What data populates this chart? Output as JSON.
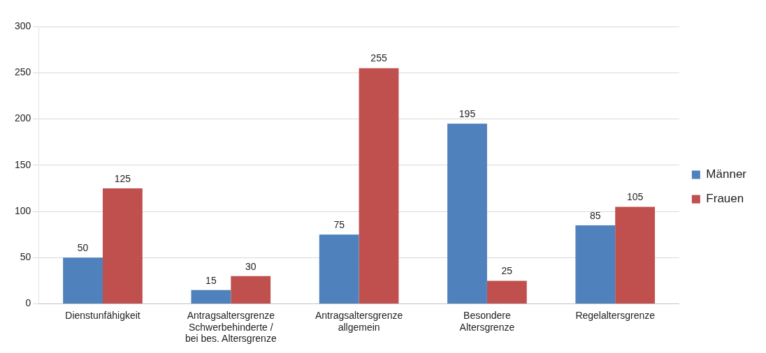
{
  "chart_data": {
    "type": "bar",
    "categories": [
      "Dienstunfähigkeit",
      "Antragsaltersgrenze Schwerbehinderte / bei bes. Altersgrenze",
      "Antragsaltersgrenze allgemein",
      "Besondere Altersgrenze",
      "Regelaltersgrenze"
    ],
    "series": [
      {
        "name": "Männer",
        "color": "#4f81bd",
        "values": [
          50,
          15,
          75,
          195,
          85
        ]
      },
      {
        "name": "Frauen",
        "color": "#c0504d",
        "values": [
          125,
          30,
          255,
          25,
          105
        ]
      }
    ],
    "ylim": [
      0,
      300
    ],
    "yticks": [
      0,
      50,
      100,
      150,
      200,
      250,
      300
    ],
    "grid": "y",
    "legend": "right",
    "data_labels": true
  }
}
